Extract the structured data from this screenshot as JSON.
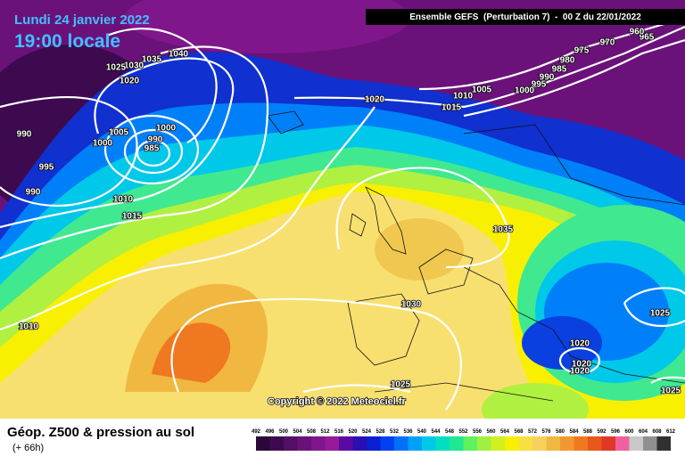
{
  "date": "Lundi 24 janvier 2022",
  "time": "19:00 locale",
  "header": "Ensemble GEFS  (Perturbation 7)  -  00 Z du 22/01/2022",
  "copyright": "Copyright © 2022 Meteociel.fr",
  "legend_title": "Géop. Z500 & pression au sol",
  "legend_subtitle": "(+ 66h)",
  "isobar_labels": [
    1040,
    1035,
    1030,
    1025,
    1020,
    1005,
    1000,
    1000,
    990,
    985,
    990,
    995,
    990,
    1010,
    1015,
    1010,
    1020,
    1015,
    1010,
    1005,
    1000,
    995,
    990,
    985,
    980,
    975,
    970,
    965,
    960,
    1035,
    1030,
    1025,
    1025,
    1020,
    1020,
    1020,
    1025
  ],
  "scale": {
    "labels": [
      492,
      496,
      500,
      504,
      508,
      512,
      516,
      520,
      524,
      528,
      532,
      536,
      540,
      544,
      548,
      552,
      556,
      560,
      564,
      568,
      572,
      576,
      580,
      584,
      588,
      592,
      596,
      600,
      604,
      608,
      612
    ],
    "colors": [
      "#2a0838",
      "#3d0a4f",
      "#530e66",
      "#6a127a",
      "#80168c",
      "#961a9a",
      "#5a0aa0",
      "#2a10b0",
      "#0a20d0",
      "#0040f0",
      "#0070f8",
      "#00a0f8",
      "#00c8e8",
      "#00e0c0",
      "#20e890",
      "#60f060",
      "#a0f040",
      "#d0f020",
      "#f8f000",
      "#f8e040",
      "#f8d060",
      "#f0b840",
      "#f09830",
      "#f07820",
      "#e85818",
      "#e03828",
      "#f060a0",
      "#c8c8c8",
      "#909090",
      "#303030"
    ]
  }
}
